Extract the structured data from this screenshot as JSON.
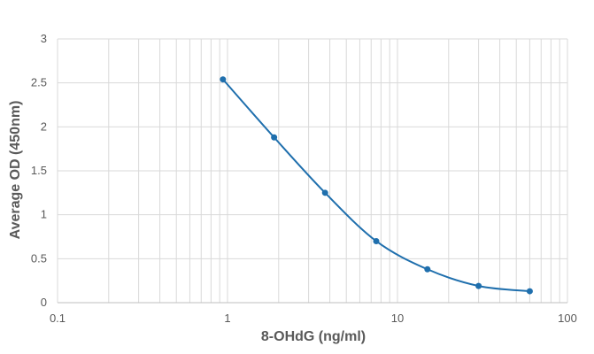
{
  "chart_data": {
    "type": "scatter",
    "title": "",
    "xlabel": "8-OHdG (ng/ml)",
    "ylabel": "Average OD (450nm)",
    "x_scale": "log",
    "xlim": [
      0.1,
      100
    ],
    "ylim": [
      0,
      3
    ],
    "x_ticks": [
      "0.1",
      "1",
      "10",
      "100"
    ],
    "y_ticks": [
      "0",
      "0.5",
      "1",
      "1.5",
      "2",
      "2.5",
      "3"
    ],
    "grid": true,
    "smooth_line": true,
    "series": [
      {
        "x": [
          0.94,
          1.88,
          3.75,
          7.5,
          15,
          30,
          60
        ],
        "y": [
          2.54,
          1.88,
          1.25,
          0.7,
          0.38,
          0.19,
          0.13
        ],
        "color": "#1f6fad"
      }
    ],
    "colors": {
      "series": "#1f6fad",
      "grid": "#d9d9d9",
      "text": "#595959"
    }
  }
}
